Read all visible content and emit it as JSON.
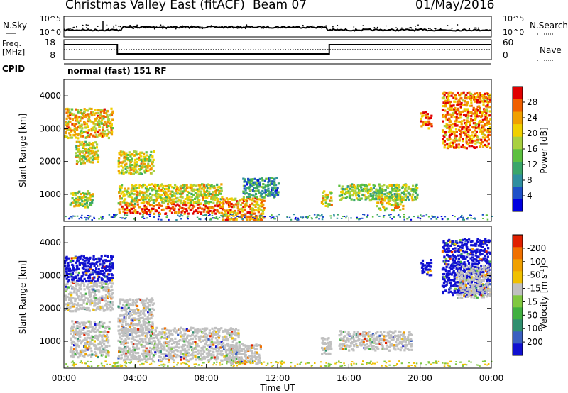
{
  "header": {
    "title": "Christmas Valley East (fitACF)",
    "beam": "Beam 07",
    "date": "01/May/2016"
  },
  "top_panels": {
    "nsky": {
      "left_label": "N.Sky",
      "right_label": "N.Search",
      "ticks_left": [
        "10^5",
        "10^0"
      ],
      "ticks_right": [
        "10^5",
        "10^0"
      ]
    },
    "freq": {
      "left_label_1": "Freq.",
      "left_label_2": "[MHz]",
      "right_label": "Nave",
      "ticks_left": [
        "18",
        "8"
      ],
      "ticks_right": [
        "60",
        "0"
      ]
    },
    "cpid": {
      "label": "CPID",
      "value": "normal (fast) 151 RF"
    }
  },
  "chart_data": [
    {
      "type": "heatmap",
      "name": "power",
      "ylabel": "Slant Range [km]",
      "ylim": [
        180,
        4500
      ],
      "yticks": [
        1000,
        2000,
        3000,
        4000
      ],
      "xlim": [
        0,
        24
      ],
      "xticks": [
        "00:00",
        "04:00",
        "08:00",
        "12:00",
        "16:00",
        "20:00",
        "00:00"
      ],
      "colorbar": {
        "label": "Power [dB]",
        "range": [
          0,
          32
        ],
        "ticks": [
          "4",
          "8",
          "12",
          "16",
          "20",
          "24",
          "28"
        ],
        "colors": [
          "#0000e0",
          "#1e50c8",
          "#2f8f9f",
          "#3aa66a",
          "#5cc040",
          "#a8d040",
          "#f0d000",
          "#f0a000",
          "#f06000",
          "#e00000"
        ]
      },
      "echo_regions": [
        {
          "t0": 0.0,
          "t1": 2.7,
          "r0": 2700,
          "r1": 3600,
          "level": 0.7
        },
        {
          "t0": 0.6,
          "t1": 1.9,
          "r0": 1900,
          "r1": 2600,
          "level": 0.6
        },
        {
          "t0": 0.3,
          "t1": 1.6,
          "r0": 600,
          "r1": 1100,
          "level": 0.55
        },
        {
          "t0": 3.0,
          "t1": 5.0,
          "r0": 1600,
          "r1": 2300,
          "level": 0.6
        },
        {
          "t0": 3.0,
          "t1": 8.8,
          "r0": 400,
          "r1": 700,
          "level": 0.9
        },
        {
          "t0": 3.0,
          "t1": 8.8,
          "r0": 700,
          "r1": 1300,
          "level": 0.6
        },
        {
          "t0": 8.8,
          "t1": 11.2,
          "r0": 200,
          "r1": 900,
          "level": 0.75
        },
        {
          "t0": 10.0,
          "t1": 12.0,
          "r0": 900,
          "r1": 1500,
          "level": 0.3
        },
        {
          "t0": 14.4,
          "t1": 15.0,
          "r0": 600,
          "r1": 1100,
          "level": 0.65
        },
        {
          "t0": 15.4,
          "t1": 19.8,
          "r0": 800,
          "r1": 1300,
          "level": 0.5
        },
        {
          "t0": 17.5,
          "t1": 19.0,
          "r0": 500,
          "r1": 900,
          "level": 0.65
        },
        {
          "t0": 20.0,
          "t1": 20.6,
          "r0": 3000,
          "r1": 3500,
          "level": 0.85
        },
        {
          "t0": 21.2,
          "t1": 23.9,
          "r0": 2400,
          "r1": 4100,
          "level": 0.8
        }
      ]
    },
    {
      "type": "heatmap",
      "name": "velocity",
      "ylabel": "Slant Range [km]",
      "ylim": [
        180,
        4500
      ],
      "yticks": [
        1000,
        2000,
        3000,
        4000
      ],
      "xlim": [
        0,
        24
      ],
      "xticks": [
        "00:00",
        "04:00",
        "08:00",
        "12:00",
        "16:00",
        "20:00",
        "00:00"
      ],
      "xlabel": "Time UT",
      "colorbar": {
        "label": "Velocity [m s^-1]",
        "ticks": [
          "200",
          "100",
          "50",
          "15",
          "-15",
          "-50",
          "-100",
          "-200"
        ],
        "colors": [
          "#1010d0",
          "#3a5fc0",
          "#2f8f6f",
          "#40b040",
          "#80c840",
          "#c0c0c0",
          "#f0c000",
          "#f0a000",
          "#f07000",
          "#e02000"
        ]
      },
      "echo_regions": [
        {
          "t0": 0.0,
          "t1": 2.7,
          "r0": 2800,
          "r1": 3600,
          "color": "#1010d0"
        },
        {
          "t0": 0.0,
          "t1": 2.7,
          "r0": 1900,
          "r1": 2800,
          "color": "#c0c0c0"
        },
        {
          "t0": 0.3,
          "t1": 2.5,
          "r0": 500,
          "r1": 1600,
          "color": "#c0c0c0"
        },
        {
          "t0": 3.0,
          "t1": 5.0,
          "r0": 1200,
          "r1": 2300,
          "color": "#c0c0c0"
        },
        {
          "t0": 3.0,
          "t1": 9.8,
          "r0": 400,
          "r1": 1400,
          "color": "#c0c0c0"
        },
        {
          "t0": 9.0,
          "t1": 11.0,
          "r0": 300,
          "r1": 900,
          "color": "#c0c0c0"
        },
        {
          "t0": 14.4,
          "t1": 15.0,
          "r0": 600,
          "r1": 1100,
          "color": "#c0c0c0"
        },
        {
          "t0": 15.4,
          "t1": 19.5,
          "r0": 700,
          "r1": 1300,
          "color": "#c0c0c0"
        },
        {
          "t0": 20.0,
          "t1": 20.6,
          "r0": 3000,
          "r1": 3500,
          "color": "#1010d0"
        },
        {
          "t0": 21.2,
          "t1": 23.9,
          "r0": 2400,
          "r1": 4100,
          "color": "#1010d0"
        },
        {
          "t0": 22.0,
          "t1": 23.9,
          "r0": 2300,
          "r1": 3300,
          "color": "#c0c0c0"
        }
      ]
    }
  ]
}
